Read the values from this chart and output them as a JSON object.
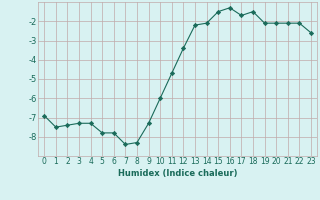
{
  "xlabel": "Humidex (Indice chaleur)",
  "ylabel": "",
  "x": [
    0,
    1,
    2,
    3,
    4,
    5,
    6,
    7,
    8,
    9,
    10,
    11,
    12,
    13,
    14,
    15,
    16,
    17,
    18,
    19,
    20,
    21,
    22,
    23
  ],
  "y": [
    -6.9,
    -7.5,
    -7.4,
    -7.3,
    -7.3,
    -7.8,
    -7.8,
    -8.4,
    -8.3,
    -7.3,
    -6.0,
    -4.7,
    -3.4,
    -2.2,
    -2.1,
    -1.5,
    -1.3,
    -1.7,
    -1.5,
    -2.1,
    -2.1,
    -2.1,
    -2.1,
    -2.6
  ],
  "line_color": "#1a6b5a",
  "marker": "D",
  "marker_size": 2.2,
  "bg_color": "#d8f2f2",
  "grid_color": "#c0aaaa",
  "tick_color": "#1a6b5a",
  "label_color": "#1a6b5a",
  "xlim": [
    -0.5,
    23.5
  ],
  "ylim": [
    -9.0,
    -1.0
  ],
  "yticks": [
    -2,
    -3,
    -4,
    -5,
    -6,
    -7,
    -8
  ],
  "xticks": [
    0,
    1,
    2,
    3,
    4,
    5,
    6,
    7,
    8,
    9,
    10,
    11,
    12,
    13,
    14,
    15,
    16,
    17,
    18,
    19,
    20,
    21,
    22,
    23
  ],
  "tick_fontsize": 5.5,
  "xlabel_fontsize": 6.0
}
